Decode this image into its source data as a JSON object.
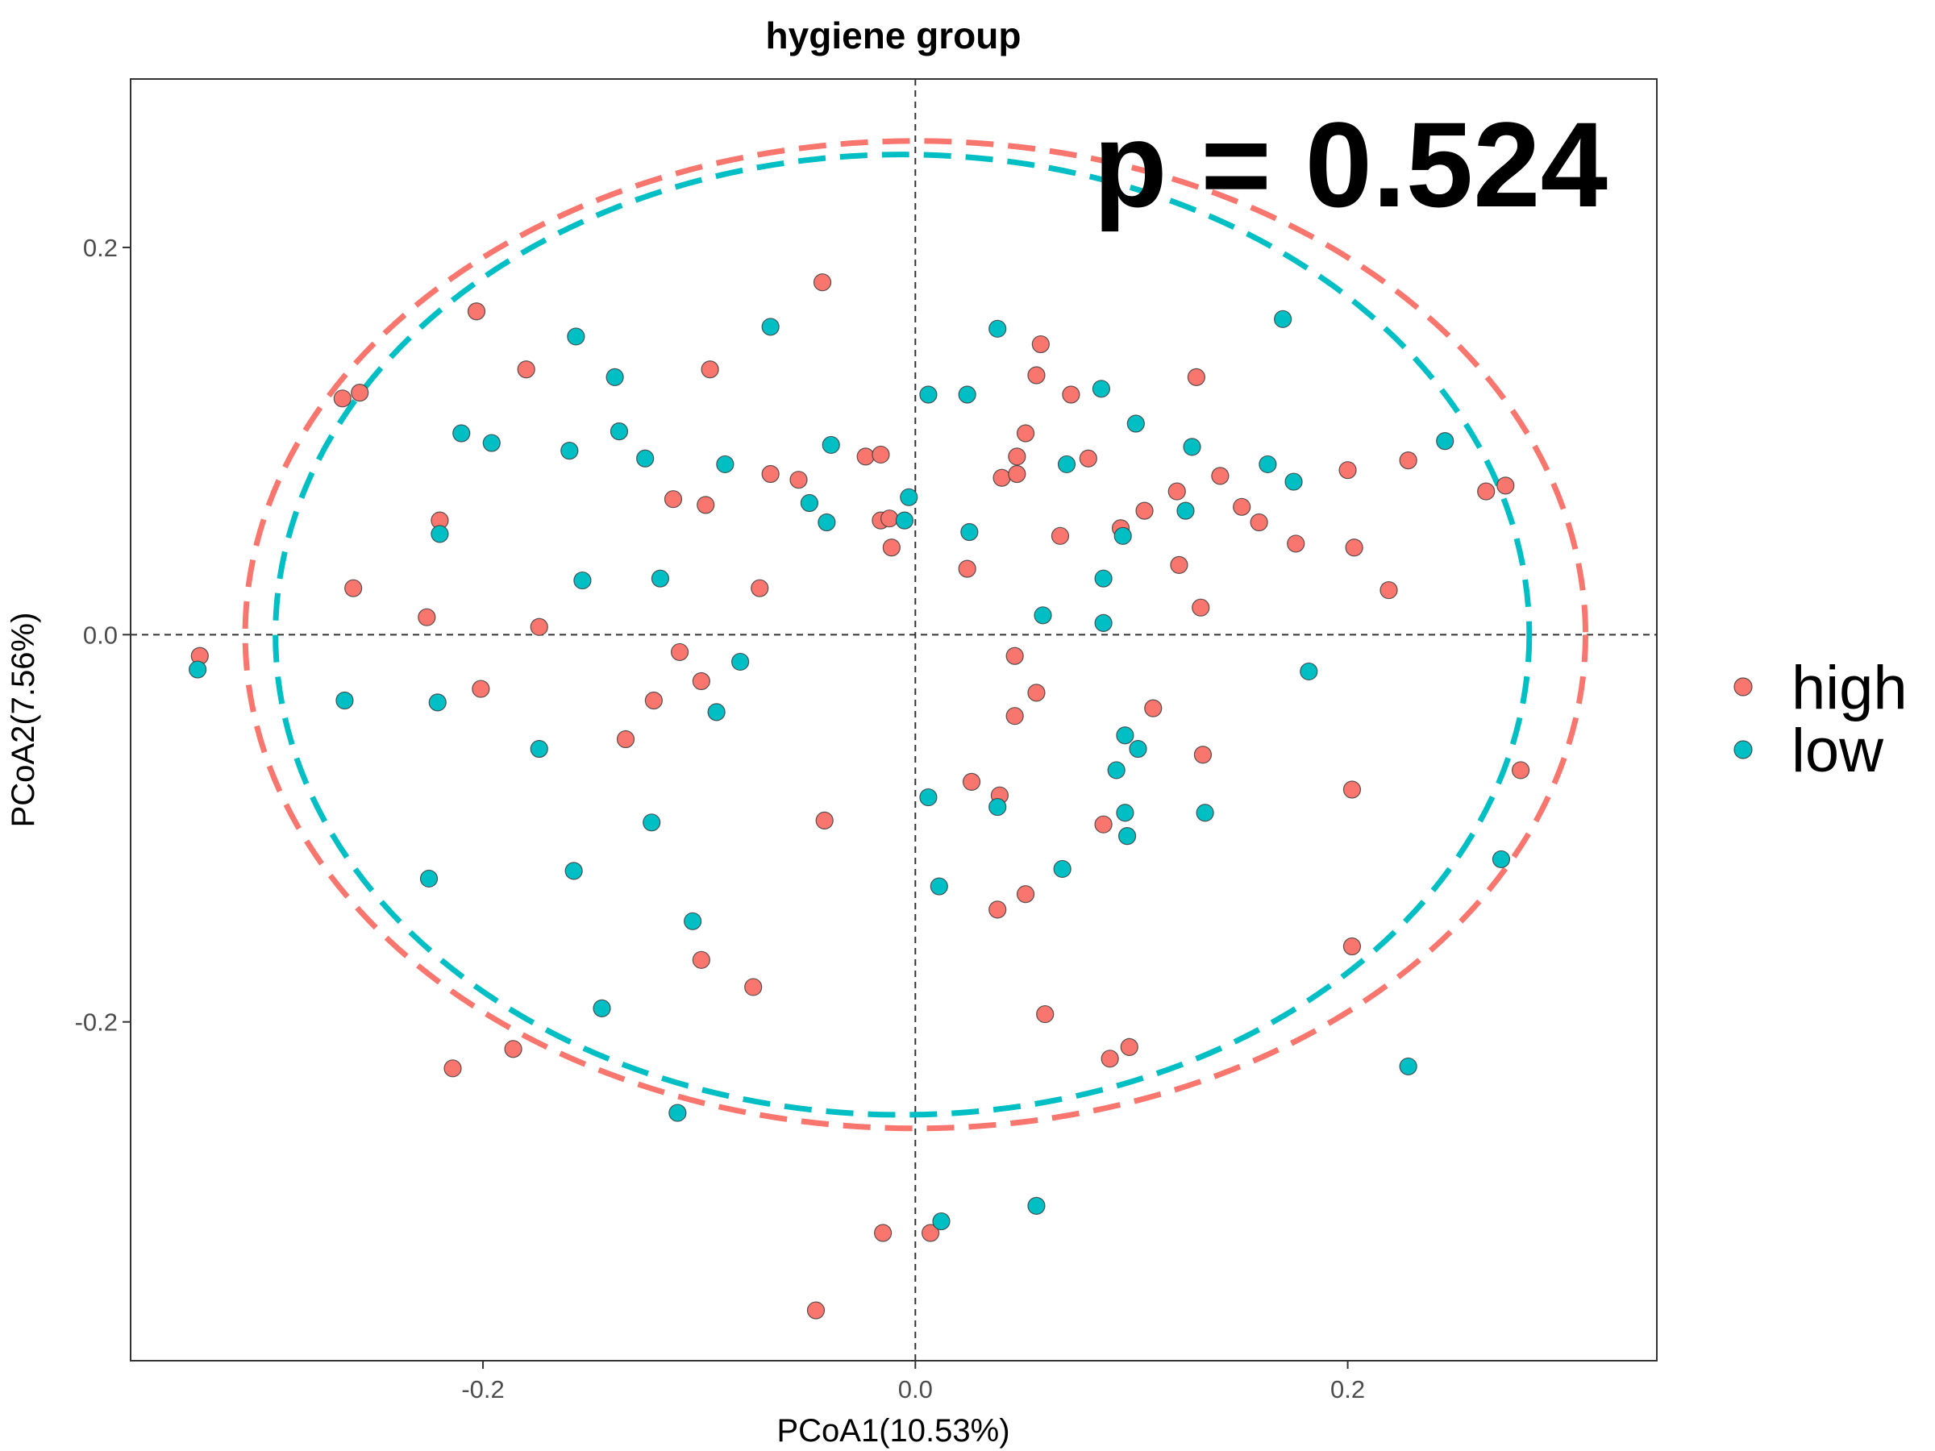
{
  "chart_data": {
    "type": "scatter",
    "title": "hygiene group",
    "xlabel": "PCoA1(10.53%)",
    "ylabel": "PCoA2(7.56%)",
    "xlim": [
      -0.363,
      0.343
    ],
    "ylim": [
      -0.375,
      0.287
    ],
    "xticks": [
      -0.2,
      0.0,
      0.2
    ],
    "yticks": [
      -0.2,
      0.0,
      0.2
    ],
    "xtick_labels": [
      "-0.2",
      "0.0",
      "0.2"
    ],
    "ytick_labels": [
      "-0.2",
      "0.0",
      "0.2"
    ],
    "reference_lines": {
      "x": 0.0,
      "y": 0.0,
      "style": "dashed"
    },
    "annotation": "p = 0.524",
    "grid": false,
    "legend_position": "right",
    "series": [
      {
        "name": "high",
        "color": "#F8766D",
        "ellipse": {
          "cx": 0.0,
          "cy": 0.0,
          "rx": 0.31,
          "ry": 0.255
        },
        "points": [
          [
            -0.331,
            -0.011
          ],
          [
            -0.265,
            0.122
          ],
          [
            -0.257,
            0.125
          ],
          [
            -0.26,
            0.024
          ],
          [
            -0.203,
            0.167
          ],
          [
            -0.22,
            0.059
          ],
          [
            -0.226,
            0.009
          ],
          [
            -0.201,
            -0.028
          ],
          [
            -0.18,
            0.137
          ],
          [
            -0.174,
            0.004
          ],
          [
            -0.214,
            -0.224
          ],
          [
            -0.186,
            -0.214
          ],
          [
            -0.109,
            -0.009
          ],
          [
            -0.112,
            0.07
          ],
          [
            -0.097,
            0.067
          ],
          [
            -0.095,
            0.137
          ],
          [
            -0.099,
            -0.024
          ],
          [
            -0.121,
            -0.034
          ],
          [
            -0.134,
            -0.054
          ],
          [
            -0.099,
            -0.168
          ],
          [
            -0.075,
            -0.182
          ],
          [
            -0.072,
            0.024
          ],
          [
            -0.067,
            0.083
          ],
          [
            -0.054,
            0.08
          ],
          [
            -0.043,
            0.182
          ],
          [
            -0.042,
            -0.096
          ],
          [
            -0.046,
            -0.349
          ],
          [
            -0.023,
            0.092
          ],
          [
            -0.016,
            0.093
          ],
          [
            -0.016,
            0.059
          ],
          [
            -0.012,
            0.06
          ],
          [
            -0.011,
            0.045
          ],
          [
            -0.015,
            -0.309
          ],
          [
            0.007,
            -0.309
          ],
          [
            0.024,
            0.034
          ],
          [
            0.026,
            -0.076
          ],
          [
            0.038,
            -0.142
          ],
          [
            0.039,
            -0.083
          ],
          [
            0.04,
            0.081
          ],
          [
            0.046,
            -0.011
          ],
          [
            0.046,
            -0.042
          ],
          [
            0.047,
            0.092
          ],
          [
            0.047,
            0.083
          ],
          [
            0.051,
            0.104
          ],
          [
            0.056,
            0.134
          ],
          [
            0.058,
            0.15
          ],
          [
            0.051,
            -0.134
          ],
          [
            0.056,
            -0.03
          ],
          [
            0.06,
            -0.196
          ],
          [
            0.067,
            0.051
          ],
          [
            0.072,
            0.124
          ],
          [
            0.08,
            0.091
          ],
          [
            0.087,
            -0.098
          ],
          [
            0.095,
            0.055
          ],
          [
            0.09,
            -0.219
          ],
          [
            0.099,
            -0.213
          ],
          [
            0.106,
            0.064
          ],
          [
            0.11,
            -0.038
          ],
          [
            0.121,
            0.074
          ],
          [
            0.122,
            0.036
          ],
          [
            0.13,
            0.133
          ],
          [
            0.132,
            0.014
          ],
          [
            0.133,
            -0.062
          ],
          [
            0.141,
            0.082
          ],
          [
            0.151,
            0.066
          ],
          [
            0.159,
            0.058
          ],
          [
            0.176,
            0.047
          ],
          [
            0.2,
            0.085
          ],
          [
            0.202,
            -0.08
          ],
          [
            0.202,
            -0.161
          ],
          [
            0.203,
            0.045
          ],
          [
            0.219,
            0.023
          ],
          [
            0.228,
            0.09
          ],
          [
            0.264,
            0.074
          ],
          [
            0.273,
            0.077
          ],
          [
            0.28,
            -0.07
          ]
        ]
      },
      {
        "name": "low",
        "color": "#00BFC4",
        "ellipse": {
          "cx": -0.006,
          "cy": 0.0,
          "rx": 0.29,
          "ry": 0.248
        },
        "points": [
          [
            -0.332,
            -0.018
          ],
          [
            -0.264,
            -0.034
          ],
          [
            -0.22,
            0.052
          ],
          [
            -0.221,
            -0.035
          ],
          [
            -0.225,
            -0.126
          ],
          [
            -0.21,
            0.104
          ],
          [
            -0.196,
            0.099
          ],
          [
            -0.174,
            -0.059
          ],
          [
            -0.16,
            0.095
          ],
          [
            -0.157,
            0.154
          ],
          [
            -0.154,
            0.028
          ],
          [
            -0.158,
            -0.122
          ],
          [
            -0.139,
            0.133
          ],
          [
            -0.137,
            0.105
          ],
          [
            -0.145,
            -0.193
          ],
          [
            -0.125,
            0.091
          ],
          [
            -0.122,
            -0.097
          ],
          [
            -0.118,
            0.029
          ],
          [
            -0.11,
            -0.247
          ],
          [
            -0.103,
            -0.148
          ],
          [
            -0.092,
            -0.04
          ],
          [
            -0.088,
            0.088
          ],
          [
            -0.081,
            -0.014
          ],
          [
            -0.067,
            0.159
          ],
          [
            -0.049,
            0.068
          ],
          [
            -0.041,
            0.058
          ],
          [
            -0.039,
            0.098
          ],
          [
            -0.005,
            0.059
          ],
          [
            -0.003,
            0.071
          ],
          [
            0.006,
            0.124
          ],
          [
            0.006,
            -0.084
          ],
          [
            0.011,
            -0.13
          ],
          [
            0.012,
            -0.303
          ],
          [
            0.024,
            0.124
          ],
          [
            0.025,
            0.053
          ],
          [
            0.038,
            0.158
          ],
          [
            0.038,
            -0.089
          ],
          [
            0.059,
            0.01
          ],
          [
            0.056,
            -0.295
          ],
          [
            0.068,
            -0.121
          ],
          [
            0.07,
            0.088
          ],
          [
            0.086,
            0.127
          ],
          [
            0.087,
            0.029
          ],
          [
            0.087,
            0.006
          ],
          [
            0.093,
            -0.07
          ],
          [
            0.096,
            0.051
          ],
          [
            0.097,
            -0.052
          ],
          [
            0.097,
            -0.092
          ],
          [
            0.098,
            -0.104
          ],
          [
            0.102,
            0.109
          ],
          [
            0.103,
            -0.059
          ],
          [
            0.125,
            0.064
          ],
          [
            0.128,
            0.097
          ],
          [
            0.134,
            -0.092
          ],
          [
            0.163,
            0.088
          ],
          [
            0.17,
            0.163
          ],
          [
            0.175,
            0.079
          ],
          [
            0.182,
            -0.019
          ],
          [
            0.228,
            -0.223
          ],
          [
            0.245,
            0.1
          ],
          [
            0.271,
            -0.116
          ]
        ]
      }
    ]
  }
}
